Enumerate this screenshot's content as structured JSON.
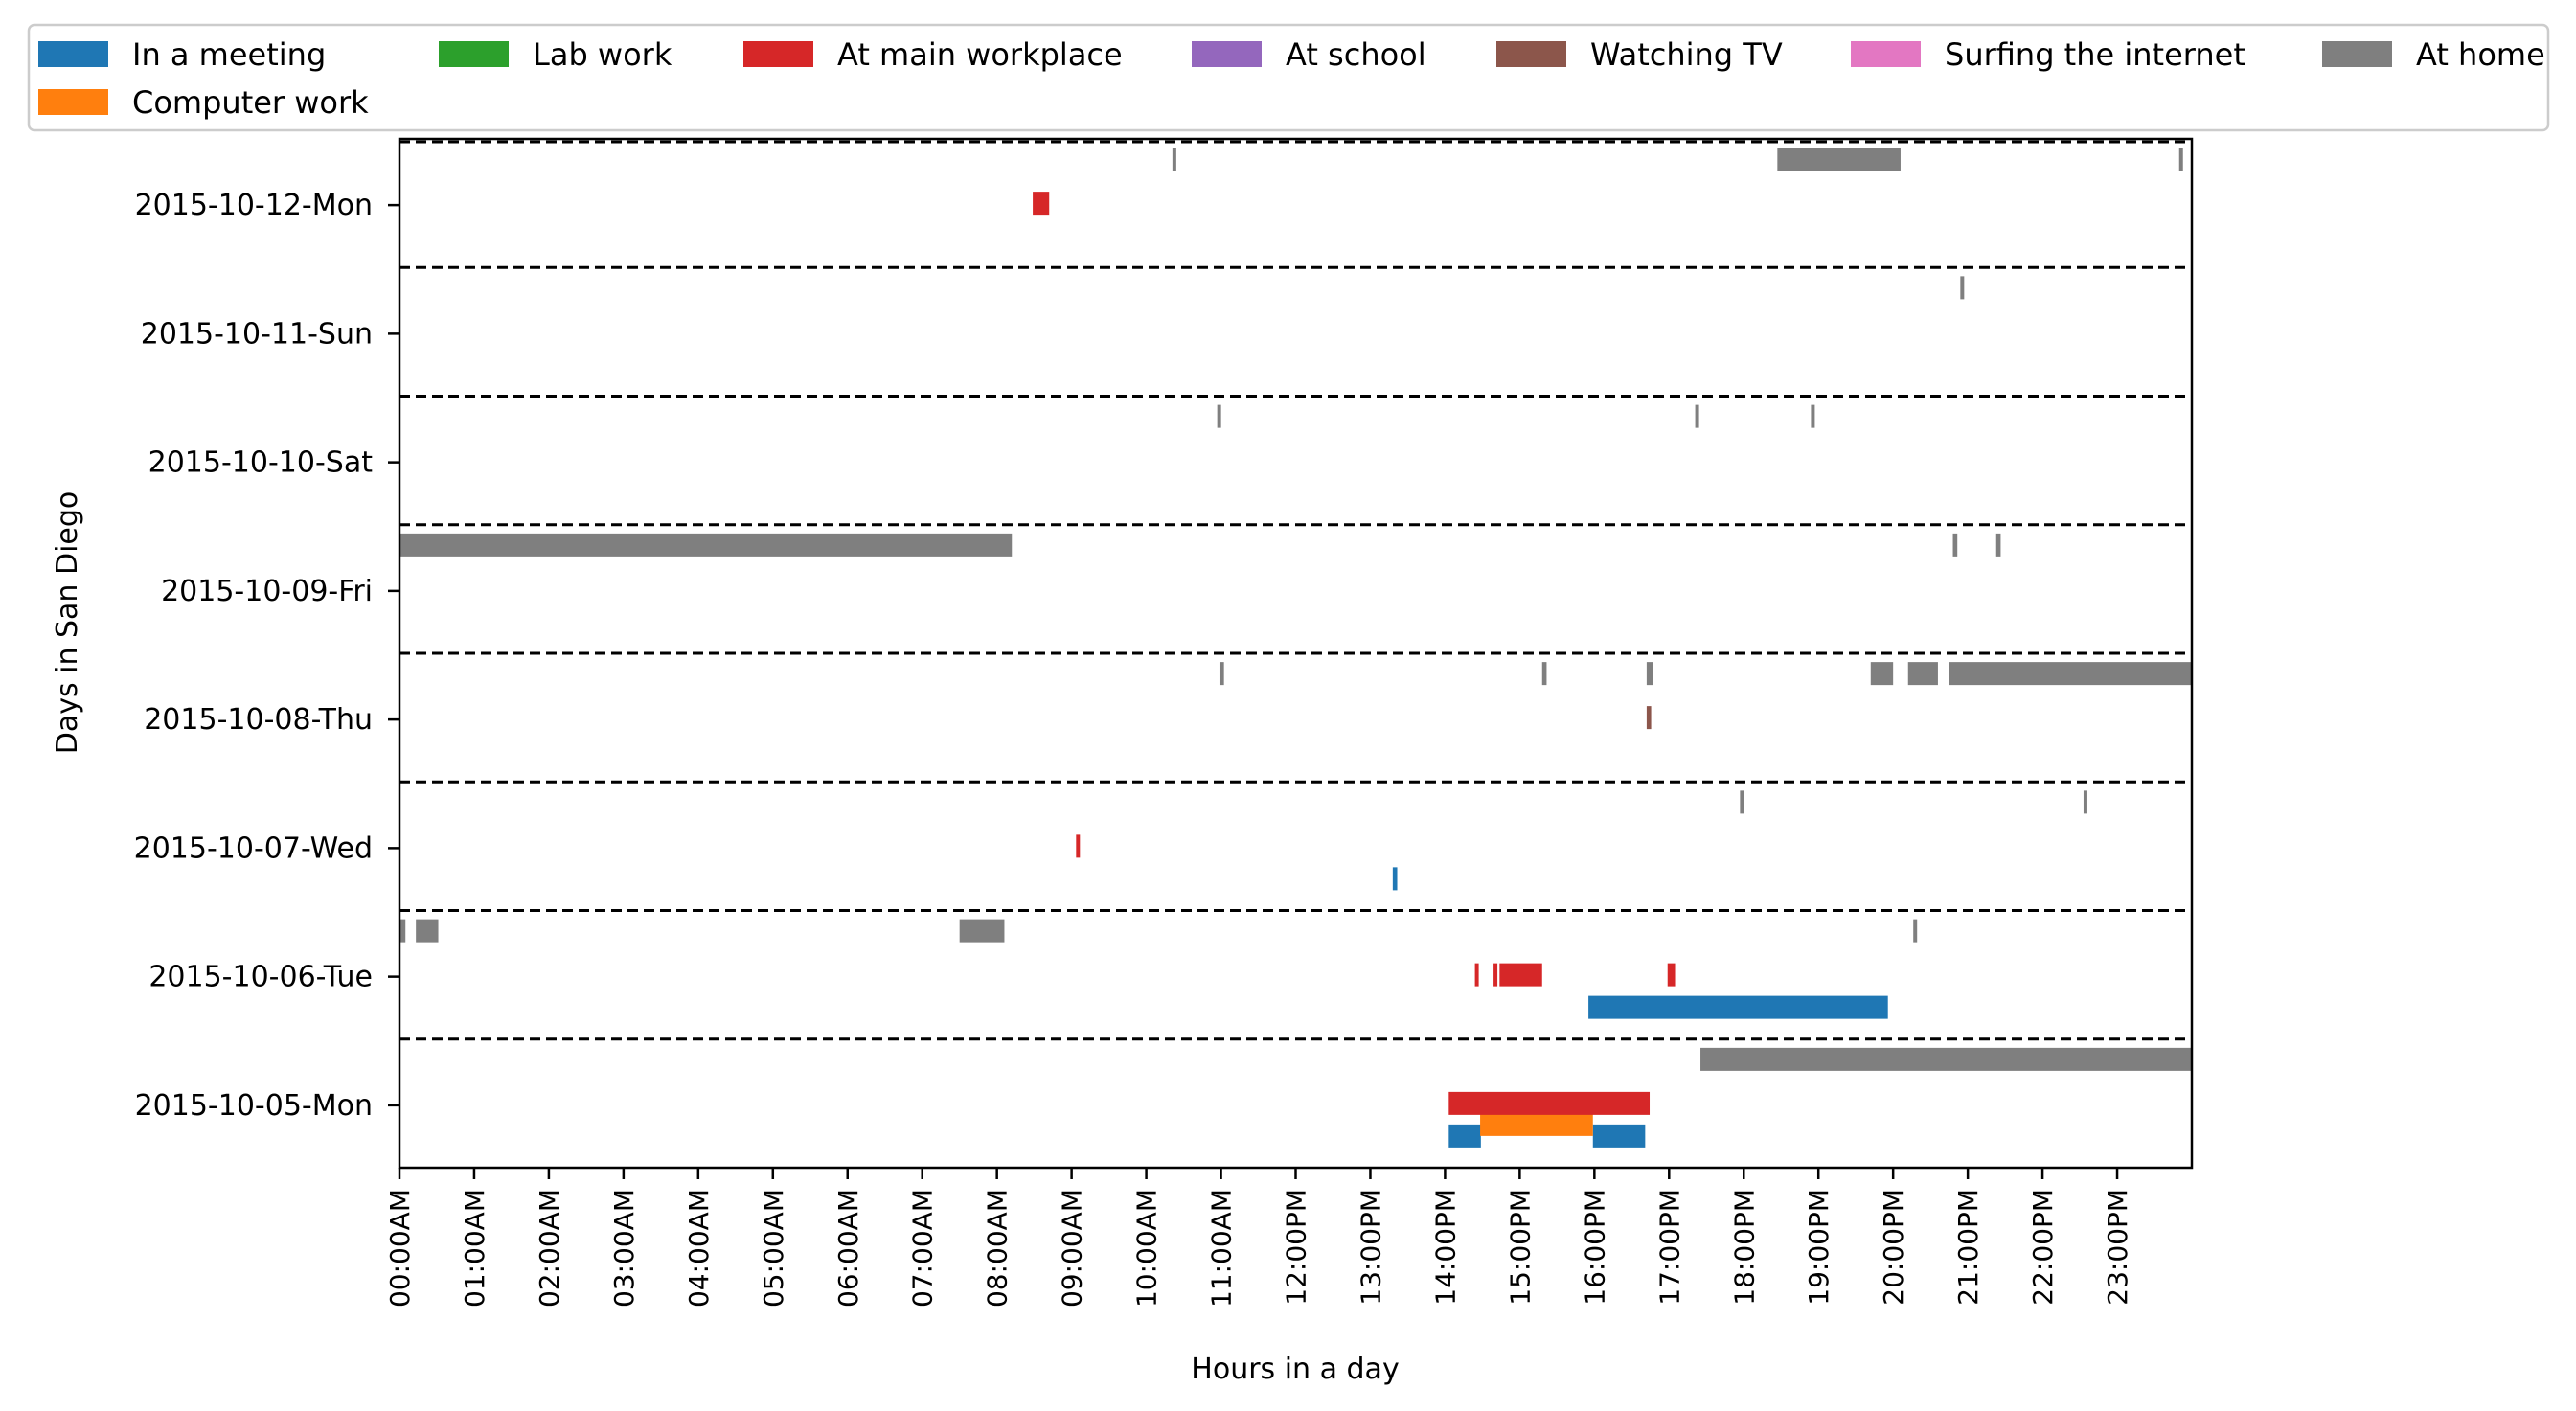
{
  "chart_data": {
    "type": "timeline",
    "xlabel": "Hours in a day",
    "ylabel": "Days in San Diego",
    "xlim": [
      0,
      24
    ],
    "x_ticks": [
      "00:00AM",
      "01:00AM",
      "02:00AM",
      "03:00AM",
      "04:00AM",
      "05:00AM",
      "06:00AM",
      "07:00AM",
      "08:00AM",
      "09:00AM",
      "10:00AM",
      "11:00AM",
      "12:00PM",
      "13:00PM",
      "14:00PM",
      "15:00PM",
      "16:00PM",
      "17:00PM",
      "18:00PM",
      "19:00PM",
      "20:00PM",
      "21:00PM",
      "22:00PM",
      "23:00PM"
    ],
    "days": [
      "2015-10-12-Mon",
      "2015-10-11-Sun",
      "2015-10-10-Sat",
      "2015-10-09-Fri",
      "2015-10-08-Thu",
      "2015-10-07-Wed",
      "2015-10-06-Tue",
      "2015-10-05-Mon"
    ],
    "legend_position": "top",
    "grid": false,
    "series": [
      {
        "name": "In a meeting",
        "color": "#1f77b4",
        "lane": 3,
        "segments": [
          {
            "day": "2015-10-07-Wed",
            "start": 13.3,
            "end": 13.36
          },
          {
            "day": "2015-10-06-Tue",
            "start": 15.92,
            "end": 19.93
          },
          {
            "day": "2015-10-05-Mon",
            "start": 14.05,
            "end": 14.48
          },
          {
            "day": "2015-10-05-Mon",
            "start": 15.98,
            "end": 16.68
          }
        ]
      },
      {
        "name": "Computer work",
        "color": "#ff7f0e",
        "lane": 2,
        "segments": [
          {
            "day": "2015-10-05-Mon",
            "start": 14.47,
            "end": 15.98
          }
        ]
      },
      {
        "name": "Lab work",
        "color": "#2ca02c",
        "lane": 2,
        "segments": []
      },
      {
        "name": "At main workplace",
        "color": "#d62728",
        "lane": 1,
        "segments": [
          {
            "day": "2015-10-12-Mon",
            "start": 8.48,
            "end": 8.7
          },
          {
            "day": "2015-10-07-Wed",
            "start": 9.06,
            "end": 9.1
          },
          {
            "day": "2015-10-06-Tue",
            "start": 14.4,
            "end": 14.45
          },
          {
            "day": "2015-10-06-Tue",
            "start": 14.65,
            "end": 14.7
          },
          {
            "day": "2015-10-06-Tue",
            "start": 14.73,
            "end": 15.3
          },
          {
            "day": "2015-10-06-Tue",
            "start": 16.98,
            "end": 17.08
          },
          {
            "day": "2015-10-05-Mon",
            "start": 14.05,
            "end": 16.74
          }
        ]
      },
      {
        "name": "At school",
        "color": "#9467bd",
        "lane": 1,
        "segments": []
      },
      {
        "name": "Watching TV",
        "color": "#8c564b",
        "lane": 1,
        "segments": [
          {
            "day": "2015-10-08-Thu",
            "start": 16.7,
            "end": 16.76
          }
        ]
      },
      {
        "name": "Surfing the internet",
        "color": "#e377c2",
        "lane": 1,
        "segments": []
      },
      {
        "name": "At home",
        "color": "#7f7f7f",
        "lane": 0,
        "segments": [
          {
            "day": "2015-10-12-Mon",
            "start": 10.35,
            "end": 10.4
          },
          {
            "day": "2015-10-12-Mon",
            "start": 18.45,
            "end": 20.1
          },
          {
            "day": "2015-10-12-Mon",
            "start": 23.83,
            "end": 23.88
          },
          {
            "day": "2015-10-11-Sun",
            "start": 20.9,
            "end": 20.95
          },
          {
            "day": "2015-10-10-Sat",
            "start": 10.95,
            "end": 11.0
          },
          {
            "day": "2015-10-10-Sat",
            "start": 17.35,
            "end": 17.4
          },
          {
            "day": "2015-10-10-Sat",
            "start": 18.9,
            "end": 18.95
          },
          {
            "day": "2015-10-09-Fri",
            "start": 0.0,
            "end": 8.2
          },
          {
            "day": "2015-10-09-Fri",
            "start": 20.8,
            "end": 20.86
          },
          {
            "day": "2015-10-09-Fri",
            "start": 21.38,
            "end": 21.44
          },
          {
            "day": "2015-10-08-Thu",
            "start": 10.98,
            "end": 11.04
          },
          {
            "day": "2015-10-08-Thu",
            "start": 15.3,
            "end": 15.36
          },
          {
            "day": "2015-10-08-Thu",
            "start": 16.7,
            "end": 16.78
          },
          {
            "day": "2015-10-08-Thu",
            "start": 19.7,
            "end": 20.0
          },
          {
            "day": "2015-10-08-Thu",
            "start": 20.2,
            "end": 20.6
          },
          {
            "day": "2015-10-08-Thu",
            "start": 20.75,
            "end": 24.0
          },
          {
            "day": "2015-10-07-Wed",
            "start": 17.95,
            "end": 18.0
          },
          {
            "day": "2015-10-07-Wed",
            "start": 22.55,
            "end": 22.6
          },
          {
            "day": "2015-10-06-Tue",
            "start": 0.0,
            "end": 0.08
          },
          {
            "day": "2015-10-06-Tue",
            "start": 0.22,
            "end": 0.52
          },
          {
            "day": "2015-10-06-Tue",
            "start": 7.5,
            "end": 8.1
          },
          {
            "day": "2015-10-06-Tue",
            "start": 20.27,
            "end": 20.32
          },
          {
            "day": "2015-10-05-Mon",
            "start": 17.42,
            "end": 24.0
          }
        ]
      }
    ]
  }
}
